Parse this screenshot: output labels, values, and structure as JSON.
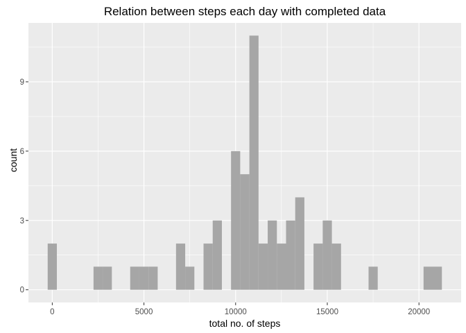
{
  "chart_data": {
    "type": "bar",
    "title": "Relation between steps each day with completed data",
    "xlabel": "total no. of steps",
    "ylabel": "count",
    "bin_width": 500,
    "bins": [
      {
        "x": 0,
        "count": 2
      },
      {
        "x": 2500,
        "count": 1
      },
      {
        "x": 3000,
        "count": 1
      },
      {
        "x": 4500,
        "count": 1
      },
      {
        "x": 5000,
        "count": 1
      },
      {
        "x": 5500,
        "count": 1
      },
      {
        "x": 7000,
        "count": 2
      },
      {
        "x": 7500,
        "count": 1
      },
      {
        "x": 8500,
        "count": 2
      },
      {
        "x": 9000,
        "count": 3
      },
      {
        "x": 10000,
        "count": 6
      },
      {
        "x": 10500,
        "count": 5
      },
      {
        "x": 11000,
        "count": 11
      },
      {
        "x": 11500,
        "count": 2
      },
      {
        "x": 12000,
        "count": 3
      },
      {
        "x": 12500,
        "count": 2
      },
      {
        "x": 13000,
        "count": 3
      },
      {
        "x": 13500,
        "count": 4
      },
      {
        "x": 14500,
        "count": 2
      },
      {
        "x": 15000,
        "count": 3
      },
      {
        "x": 15500,
        "count": 2
      },
      {
        "x": 17500,
        "count": 1
      },
      {
        "x": 20500,
        "count": 1
      },
      {
        "x": 21000,
        "count": 1
      }
    ],
    "xlim": [
      -1300,
      22300
    ],
    "ylim": [
      -0.55,
      11.55
    ],
    "x_ticks": [
      0,
      5000,
      10000,
      15000,
      20000
    ],
    "x_tick_labels": [
      "0",
      "5000",
      "10000",
      "15000",
      "20000"
    ],
    "y_ticks": [
      0,
      3,
      6,
      9
    ],
    "y_tick_labels": [
      "0",
      "3",
      "6",
      "9"
    ],
    "grid": true,
    "colors": {
      "panel_background": "#ebebeb",
      "grid_major": "#ffffff",
      "bar_fill": "#a6a6a6"
    }
  }
}
